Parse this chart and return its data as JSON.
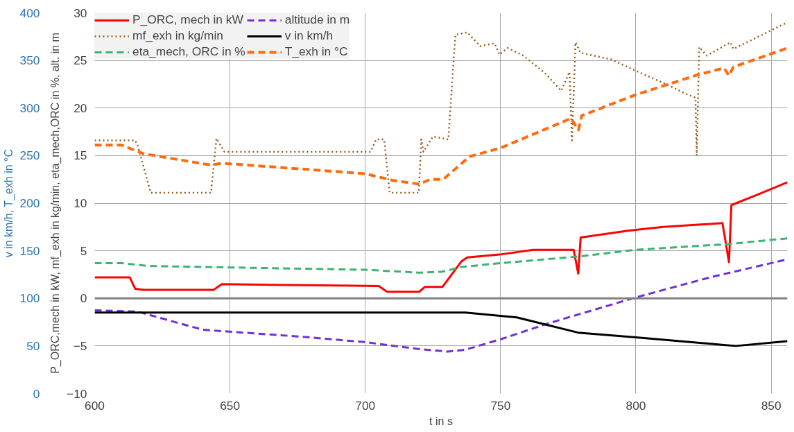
{
  "chart_data": {
    "type": "line",
    "xlabel": "t in s",
    "ylabel": "P_ORC,mech in kW, mf_exh in kg/min, eta_mech,ORC in %, alt. in m",
    "y2label": "v in km/h, T_exh in °C",
    "xlim": [
      600,
      856
    ],
    "xticks": [
      600,
      650,
      700,
      750,
      800,
      850
    ],
    "ylim": [
      -10,
      30
    ],
    "yticks": [
      -10,
      -5,
      0,
      5,
      10,
      15,
      20,
      25,
      30
    ],
    "y2lim": [
      0,
      400
    ],
    "y2ticks": [
      0,
      50,
      100,
      150,
      200,
      250,
      300,
      350,
      400
    ],
    "grid": true,
    "legend": "top left",
    "ref_lines": [
      {
        "axis": "y",
        "value": 0,
        "color": "#808080"
      }
    ],
    "series": [
      {
        "name": "P_ORC, mech in kW",
        "color": "#ff0000",
        "line_style": "solid",
        "x": [
          600,
          613,
          615,
          618,
          644,
          647,
          670,
          705,
          708,
          720,
          722,
          728.5,
          735.6,
          737.7,
          749.6,
          762,
          777,
          778.7,
          779.6,
          797,
          810,
          832,
          834.4,
          835.3,
          845,
          856
        ],
        "values": [
          2.2,
          2.2,
          1.0,
          0.9,
          0.9,
          1.5,
          1.4,
          1.3,
          0.7,
          0.7,
          1.2,
          1.2,
          3.9,
          4.3,
          4.6,
          5.1,
          5.1,
          2.6,
          6.4,
          7.1,
          7.5,
          7.9,
          3.8,
          9.8,
          10.9,
          12.2
        ]
      },
      {
        "name": "mf_exh in kg/min",
        "color": "#9c5a1a",
        "line_style": "dotted",
        "x": [
          600,
          615,
          616,
          620.7,
          643,
          645,
          648,
          702,
          704,
          707,
          709,
          719.8,
          720.7,
          721.5,
          725,
          730.7,
          733.3,
          737.7,
          742.5,
          747.8,
          749.6,
          752.6,
          758.4,
          766.3,
          772.4,
          775.5,
          776.4,
          777.7,
          779.5,
          791,
          800,
          810.4,
          819.2,
          822,
          822.5,
          823.4,
          826.2,
          835,
          836,
          856
        ],
        "values": [
          16.6,
          16.6,
          16.0,
          11.1,
          11.1,
          16.8,
          15.4,
          15.4,
          16.7,
          16.7,
          11.1,
          11.1,
          16.7,
          15.4,
          17.0,
          16.7,
          27.7,
          27.95,
          26.5,
          26.8,
          25.6,
          26.3,
          25.5,
          23.7,
          21.8,
          23.8,
          16.6,
          26.9,
          25.8,
          25.1,
          23.9,
          22.6,
          21.4,
          21.1,
          15.0,
          26.4,
          25.5,
          26.9,
          26.2,
          29.0
        ]
      },
      {
        "name": "eta_mech, ORC in %",
        "color": "#3cb371",
        "line_style": "dashed",
        "x": [
          600,
          610,
          620,
          650,
          700,
          720,
          728.5,
          735.6,
          750,
          779,
          800,
          834,
          856
        ],
        "values": [
          3.7,
          3.7,
          3.4,
          3.25,
          3.0,
          2.7,
          2.8,
          3.3,
          3.7,
          4.4,
          5.1,
          5.7,
          6.3
        ]
      },
      {
        "name": "altitude in m",
        "color": "#7030d8",
        "line_style": "dashed",
        "x": [
          600,
          616,
          631,
          640,
          650,
          675,
          700,
          719,
          730.5,
          737,
          750,
          768,
          800,
          828,
          856
        ],
        "values": [
          -1.26,
          -1.4,
          -2.6,
          -3.3,
          -3.5,
          -4.0,
          -4.6,
          -5.3,
          -5.6,
          -5.4,
          -4.3,
          -2.6,
          0.1,
          2.25,
          4.1
        ]
      },
      {
        "name": "v in km/h",
        "color": "#000000",
        "line_style": "solid",
        "axis": "y2",
        "x": [
          600,
          737,
          756,
          778.6,
          800,
          832.5,
          837,
          856
        ],
        "values": [
          85,
          85,
          80,
          64,
          59,
          51,
          50,
          55
        ]
      },
      {
        "name": "T_exh in °C",
        "color": "#ff6a0f",
        "line_style": "dashed",
        "axis": "y2",
        "x": [
          600,
          610,
          618,
          643,
          647,
          700,
          710,
          720,
          724,
          728.8,
          738.5,
          750,
          776,
          778.8,
          780,
          800,
          823,
          832.6,
          834.4,
          836,
          856
        ],
        "values": [
          261,
          261,
          252,
          240,
          242,
          231,
          224,
          220,
          225,
          225,
          249,
          258,
          289,
          277,
          292,
          314,
          335,
          342,
          334,
          343,
          363
        ]
      }
    ]
  }
}
